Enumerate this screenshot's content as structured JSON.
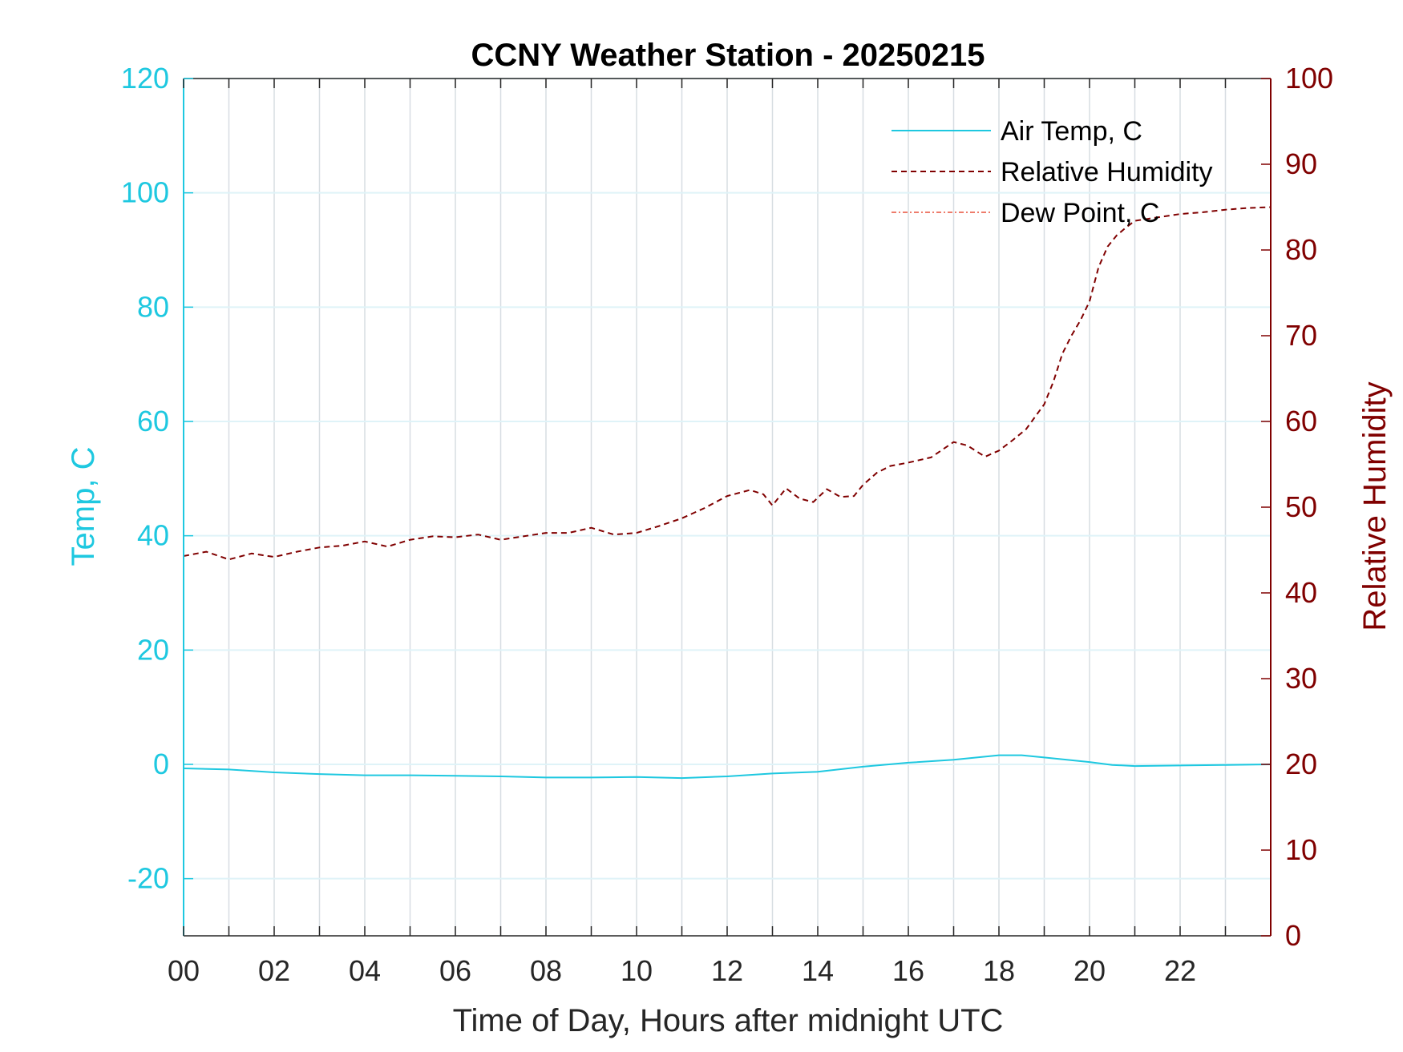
{
  "chart_data": {
    "type": "line",
    "title": "CCNY Weather Station - 20250215",
    "xlabel": "Time of Day, Hours after midnight UTC",
    "ylabel_left": "Temp, C",
    "ylabel_right": "Relative Humidity",
    "xlim": [
      0,
      24
    ],
    "ylim_left": [
      -30,
      120
    ],
    "ylim_right": [
      0,
      100
    ],
    "x_ticks": [
      0,
      2,
      4,
      6,
      8,
      10,
      12,
      14,
      16,
      18,
      20,
      22
    ],
    "x_tick_labels": [
      "00",
      "02",
      "04",
      "06",
      "08",
      "10",
      "12",
      "14",
      "16",
      "18",
      "20",
      "22"
    ],
    "y_left_ticks": [
      -20,
      0,
      20,
      40,
      60,
      80,
      100,
      120
    ],
    "y_left_tick_labels": [
      "-20",
      "0",
      "20",
      "40",
      "60",
      "80",
      "100",
      "120"
    ],
    "y_right_ticks": [
      0,
      10,
      20,
      30,
      40,
      50,
      60,
      70,
      80,
      90,
      100
    ],
    "y_right_tick_labels": [
      "0",
      "10",
      "20",
      "30",
      "40",
      "50",
      "60",
      "70",
      "80",
      "90",
      "100"
    ],
    "grid": true,
    "legend_position": "top-right",
    "colors": {
      "air_temp": "#1ec8e0",
      "humidity": "#800000",
      "dew_point": "#e8503c",
      "grid": "#d7dde2",
      "axis": "#262626"
    },
    "series": [
      {
        "name": "Air Temp, C",
        "axis": "left",
        "style": "solid",
        "x": [
          0,
          1,
          2,
          3,
          4,
          5,
          6,
          7,
          8,
          9,
          10,
          11,
          12,
          13,
          14,
          15,
          16,
          17,
          18,
          18.5,
          19,
          20,
          20.5,
          21,
          22,
          23,
          24
        ],
        "values": [
          -0.7,
          -0.9,
          -1.4,
          -1.7,
          -1.9,
          -1.9,
          -2.0,
          -2.1,
          -2.3,
          -2.3,
          -2.2,
          -2.4,
          -2.1,
          -1.6,
          -1.3,
          -0.4,
          0.3,
          0.8,
          1.6,
          1.6,
          1.2,
          0.4,
          -0.1,
          -0.3,
          -0.2,
          -0.1,
          0.0
        ]
      },
      {
        "name": "Relative Humidity",
        "axis": "right",
        "style": "dashed",
        "x": [
          0,
          0.5,
          1.0,
          1.5,
          2.0,
          2.5,
          3.0,
          3.5,
          4.0,
          4.5,
          5.0,
          5.5,
          6.0,
          6.5,
          7.0,
          7.5,
          8.0,
          8.5,
          9.0,
          9.5,
          10.0,
          10.5,
          11.0,
          11.5,
          12.0,
          12.5,
          12.8,
          13.0,
          13.3,
          13.6,
          13.9,
          14.2,
          14.5,
          14.8,
          15.0,
          15.3,
          15.6,
          16.0,
          16.5,
          17.0,
          17.3,
          17.6,
          17.7,
          18.0,
          18.3,
          18.6,
          19.0,
          19.2,
          19.4,
          19.6,
          19.8,
          20.0,
          20.2,
          20.4,
          20.6,
          20.8,
          21.0,
          21.5,
          22.0,
          22.5,
          23.0,
          23.5,
          24.0
        ],
        "values": [
          44.3,
          44.8,
          43.9,
          44.6,
          44.2,
          44.8,
          45.3,
          45.5,
          46.0,
          45.4,
          46.2,
          46.6,
          46.5,
          46.8,
          46.2,
          46.6,
          47.0,
          47.0,
          47.6,
          46.8,
          47.0,
          47.8,
          48.7,
          49.9,
          51.3,
          52.0,
          51.5,
          50.2,
          52.2,
          51.0,
          50.6,
          52.1,
          51.2,
          51.3,
          52.6,
          54.0,
          54.8,
          55.2,
          55.8,
          57.6,
          57.2,
          56.2,
          55.9,
          56.6,
          57.8,
          59.1,
          62.0,
          64.6,
          67.9,
          70.0,
          71.8,
          74.0,
          78.0,
          80.4,
          81.7,
          82.6,
          83.4,
          83.8,
          84.2,
          84.4,
          84.7,
          84.9,
          85.0
        ]
      },
      {
        "name": "Dew Point, C",
        "axis": "left",
        "style": "dashdot",
        "x": [],
        "values": []
      }
    ]
  }
}
